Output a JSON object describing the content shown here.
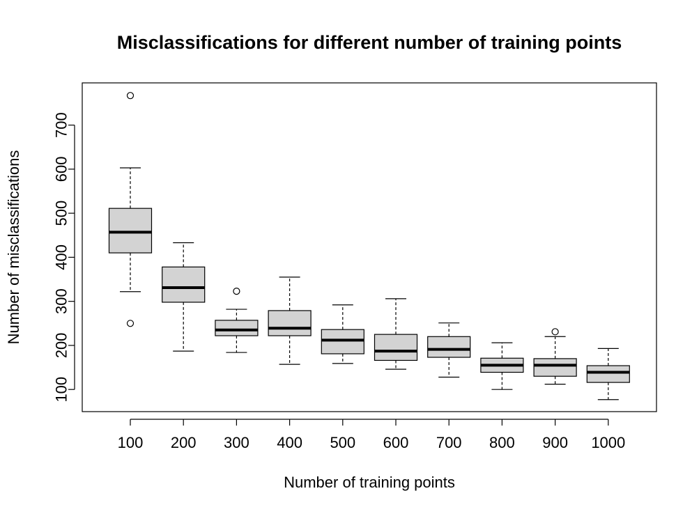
{
  "chart_data": {
    "type": "boxplot",
    "title": "Misclassifications for different number of training points",
    "xlabel": "Number of training points",
    "ylabel": "Number of misclassifications",
    "ylim": [
      50,
      820
    ],
    "y_ticks": [
      100,
      200,
      300,
      400,
      500,
      600,
      700
    ],
    "grid": false,
    "legend": "none",
    "categories": [
      "100",
      "200",
      "300",
      "400",
      "500",
      "600",
      "700",
      "800",
      "900",
      "1000"
    ],
    "boxes": [
      {
        "category": "100",
        "whisker_low": 322,
        "q1": 410,
        "median": 457,
        "q3": 511,
        "whisker_high": 603,
        "outliers": [
          250,
          767
        ]
      },
      {
        "category": "200",
        "whisker_low": 187,
        "q1": 298,
        "median": 331,
        "q3": 378,
        "whisker_high": 433,
        "outliers": []
      },
      {
        "category": "300",
        "whisker_low": 184,
        "q1": 222,
        "median": 235,
        "q3": 257,
        "whisker_high": 282,
        "outliers": [
          323
        ]
      },
      {
        "category": "400",
        "whisker_low": 157,
        "q1": 222,
        "median": 239,
        "q3": 279,
        "whisker_high": 355,
        "outliers": []
      },
      {
        "category": "500",
        "whisker_low": 159,
        "q1": 181,
        "median": 212,
        "q3": 236,
        "whisker_high": 292,
        "outliers": []
      },
      {
        "category": "600",
        "whisker_low": 146,
        "q1": 166,
        "median": 187,
        "q3": 225,
        "whisker_high": 306,
        "outliers": []
      },
      {
        "category": "700",
        "whisker_low": 128,
        "q1": 173,
        "median": 191,
        "q3": 220,
        "whisker_high": 251,
        "outliers": []
      },
      {
        "category": "800",
        "whisker_low": 100,
        "q1": 139,
        "median": 155,
        "q3": 171,
        "whisker_high": 206,
        "outliers": []
      },
      {
        "category": "900",
        "whisker_low": 112,
        "q1": 130,
        "median": 155,
        "q3": 170,
        "whisker_high": 220,
        "outliers": [
          231
        ]
      },
      {
        "category": "1000",
        "whisker_low": 77,
        "q1": 116,
        "median": 139,
        "q3": 154,
        "whisker_high": 193,
        "outliers": []
      }
    ],
    "colors": {
      "box_fill": "#d3d3d3",
      "stroke": "#000000",
      "background": "#ffffff"
    }
  }
}
